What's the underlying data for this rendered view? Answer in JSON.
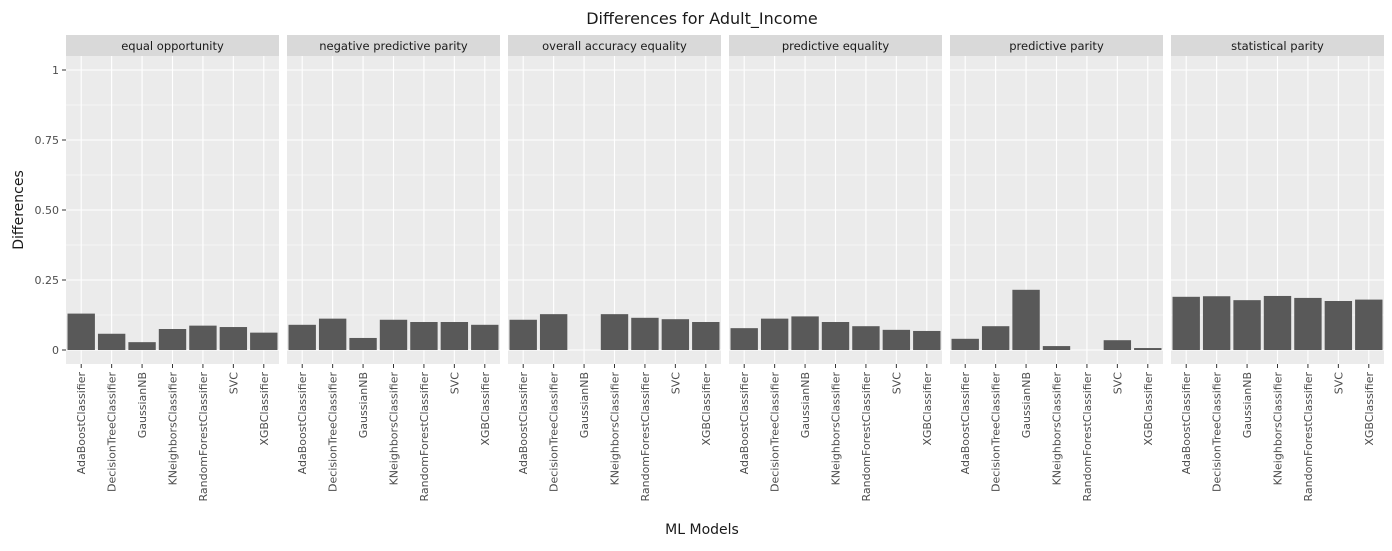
{
  "chart_data": {
    "type": "bar",
    "title": "Differences for Adult_Income",
    "xlabel": "ML Models",
    "ylabel": "Differences",
    "ylim": [
      -0.05,
      1.05
    ],
    "yticks": [
      0,
      0.25,
      0.5,
      0.75,
      1
    ],
    "ytick_labels": [
      "0",
      "0.25",
      "0.50",
      "0.75",
      "1"
    ],
    "grid": true,
    "categories": [
      "AdaBoostClassifier",
      "DecisionTreeClassifier",
      "GaussianNB",
      "KNeighborsClassifier",
      "RandomForestClassifier",
      "SVC",
      "XGBClassifier"
    ],
    "panels": [
      {
        "name": "equal opportunity",
        "values": [
          0.13,
          0.058,
          0.028,
          0.075,
          0.087,
          0.082,
          0.062
        ]
      },
      {
        "name": "negative predictive parity",
        "values": [
          0.09,
          0.112,
          0.043,
          0.108,
          0.1,
          0.1,
          0.09
        ]
      },
      {
        "name": "overall accuracy equality",
        "values": [
          0.108,
          0.128,
          0.0,
          0.128,
          0.115,
          0.11,
          0.1
        ]
      },
      {
        "name": "predictive equality",
        "values": [
          0.078,
          0.112,
          0.12,
          0.1,
          0.085,
          0.072,
          0.068
        ]
      },
      {
        "name": "predictive parity",
        "values": [
          0.04,
          0.085,
          0.215,
          0.014,
          0.0,
          0.035,
          0.007
        ]
      },
      {
        "name": "statistical parity",
        "values": [
          0.19,
          0.192,
          0.178,
          0.193,
          0.186,
          0.175,
          0.18
        ]
      }
    ],
    "colors": {
      "bar": "#595959",
      "panel_background": "#ebebeb",
      "strip_background": "#d9d9d9",
      "grid": "#ffffff",
      "text": "#1a1a1a",
      "tick_text": "#4d4d4d"
    }
  }
}
